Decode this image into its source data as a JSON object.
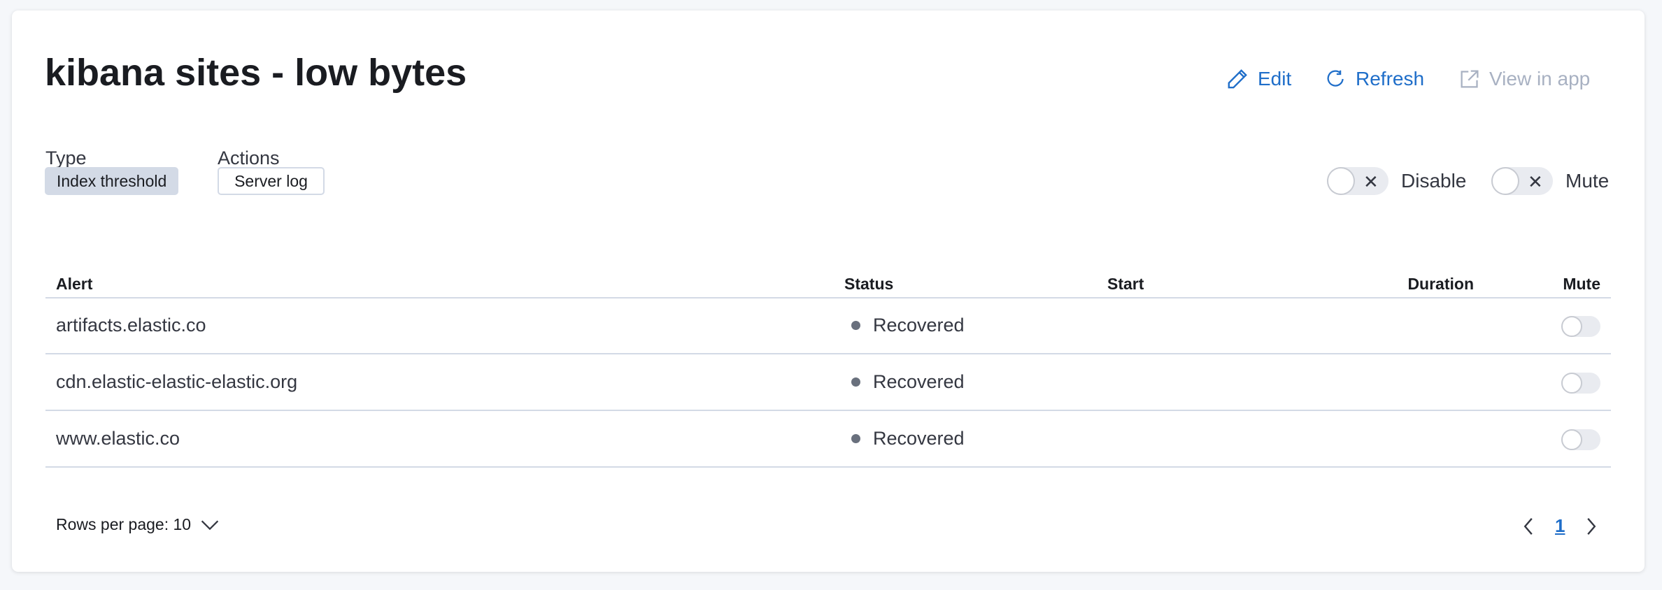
{
  "header": {
    "title": "kibana sites - low bytes",
    "edit": "Edit",
    "refresh": "Refresh",
    "view_in_app": "View in app"
  },
  "meta": {
    "type_label": "Type",
    "type_value": "Index threshold",
    "actions_label": "Actions",
    "actions_value": "Server log"
  },
  "controls": {
    "disable": "Disable",
    "mute": "Mute",
    "disable_on": false,
    "mute_on": false
  },
  "table": {
    "columns": [
      "Alert",
      "Status",
      "Start",
      "Duration",
      "Mute"
    ],
    "rows": [
      {
        "alert": "artifacts.elastic.co",
        "status": "Recovered",
        "start": "",
        "duration": "",
        "muted": false
      },
      {
        "alert": "cdn.elastic-elastic-elastic.org",
        "status": "Recovered",
        "start": "",
        "duration": "",
        "muted": false
      },
      {
        "alert": "www.elastic.co",
        "status": "Recovered",
        "start": "",
        "duration": "",
        "muted": false
      }
    ]
  },
  "pagination": {
    "rows_per_page": "Rows per page: 10",
    "current_page": "1"
  },
  "colors": {
    "accent": "#1f6ec9",
    "disabled": "#a8b1c2",
    "status_dot": "#69707d",
    "badge_bg": "#d3dae6"
  }
}
